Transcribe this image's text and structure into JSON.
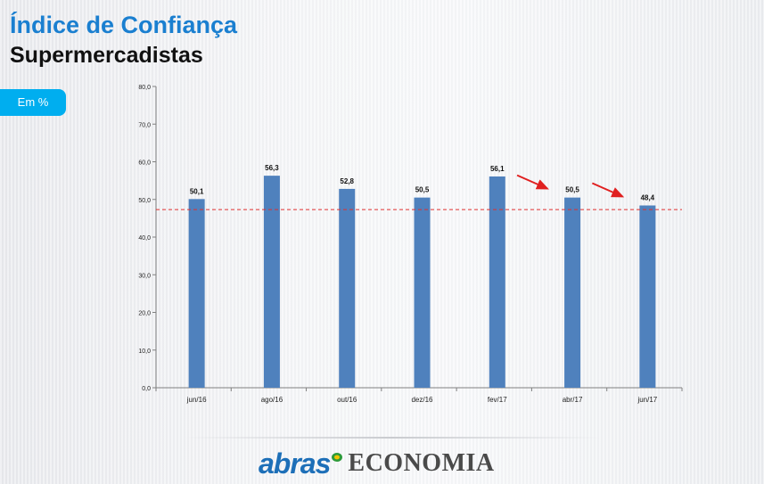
{
  "header": {
    "title": "Índice de Confiança",
    "subtitle": "Supermercadistas",
    "unit_badge": "Em %"
  },
  "chart_data": {
    "type": "bar",
    "categories": [
      "jun/16",
      "ago/16",
      "out/16",
      "dez/16",
      "fev/17",
      "abr/17",
      "jun/17"
    ],
    "values": [
      50.1,
      56.3,
      52.8,
      50.5,
      56.1,
      50.5,
      48.4
    ],
    "value_labels": [
      "50,1",
      "56,3",
      "52,8",
      "50,5",
      "56,1",
      "50,5",
      "48,4"
    ],
    "ylim": [
      0,
      80
    ],
    "y_ticks": [
      0,
      10,
      20,
      30,
      40,
      50,
      60,
      70,
      80
    ],
    "y_tick_labels": [
      "0,0",
      "10,0",
      "20,0",
      "30,0",
      "40,0",
      "50,0",
      "60,0",
      "70,0",
      "80,0"
    ],
    "reference_line": 47.3,
    "bar_color": "#4f81bd",
    "reference_line_color": "#e03030",
    "annotations": [
      {
        "type": "arrow",
        "points_to": "abr/17",
        "color": "#e02020"
      },
      {
        "type": "arrow",
        "points_to": "jun/17",
        "color": "#e02020"
      }
    ]
  },
  "footer": {
    "brand": "abras",
    "wordmark": "ECONOMIA",
    "brand_color": "#1d6fb8",
    "mark_colors": [
      "#2e9b3a",
      "#f2c300"
    ]
  }
}
